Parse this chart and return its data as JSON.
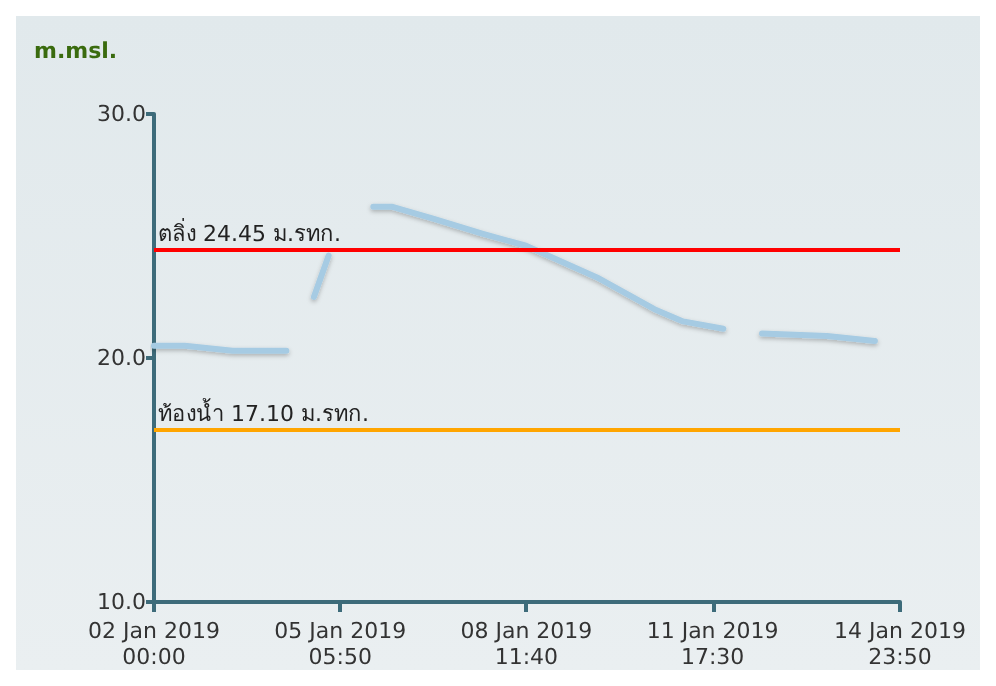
{
  "chart_data": {
    "type": "line",
    "ylabel": "m.msl.",
    "x": [
      "2019-01-02T00:00",
      "2019-01-02T12:50",
      "2019-01-03T08:50",
      "2019-01-04T07:20",
      null,
      "2019-01-04T18:50",
      "2019-01-05T01:00",
      null,
      "2019-01-05T19:40",
      "2019-01-06T03:20",
      "2019-01-06T21:00",
      "2019-01-07T17:10",
      "2019-01-08T11:30",
      "2019-01-09T17:10",
      "2019-01-10T17:10",
      "2019-01-11T05:10",
      "2019-01-11T22:00",
      null,
      "2019-01-12T14:10",
      "2019-01-13T17:20",
      "2019-01-14T13:20"
    ],
    "series": [
      {
        "color": "#a6cbe3",
        "values": [
          20.5,
          20.5,
          20.3,
          20.3,
          null,
          22.5,
          24.2,
          null,
          26.2,
          26.2,
          25.7,
          25.1,
          24.6,
          23.3,
          22.0,
          21.5,
          21.2,
          null,
          21.0,
          20.9,
          20.7
        ]
      }
    ],
    "xlim": [
      "2019-01-02T00:00",
      "2019-01-14T23:50"
    ],
    "xticks": [
      {
        "value": "2019-01-02T00:00",
        "label": "02 Jan 2019\n00:00"
      },
      {
        "value": "2019-01-05T05:50",
        "label": "05 Jan 2019\n05:50"
      },
      {
        "value": "2019-01-08T11:40",
        "label": "08 Jan 2019\n11:40"
      },
      {
        "value": "2019-01-11T17:30",
        "label": "11 Jan 2019\n17:30"
      },
      {
        "value": "2019-01-14T23:50",
        "label": "14 Jan 2019\n23:50"
      }
    ],
    "ylim": [
      10,
      30
    ],
    "yticks": [
      {
        "value": 10,
        "label": "10.0"
      },
      {
        "value": 20,
        "label": "20.0"
      },
      {
        "value": 30,
        "label": "30.0"
      }
    ],
    "ref_lines": [
      {
        "axis": "y",
        "value": 24.45,
        "label": "ตลิ่ง 24.45 ม.รทก.",
        "color": "#ff0000"
      },
      {
        "axis": "y",
        "value": 17.1,
        "label": "ท้องน้ำ 17.10 ม.รทก.",
        "color": "#ffa500"
      }
    ],
    "grid": false,
    "marker": "none",
    "line_style": "solid"
  }
}
